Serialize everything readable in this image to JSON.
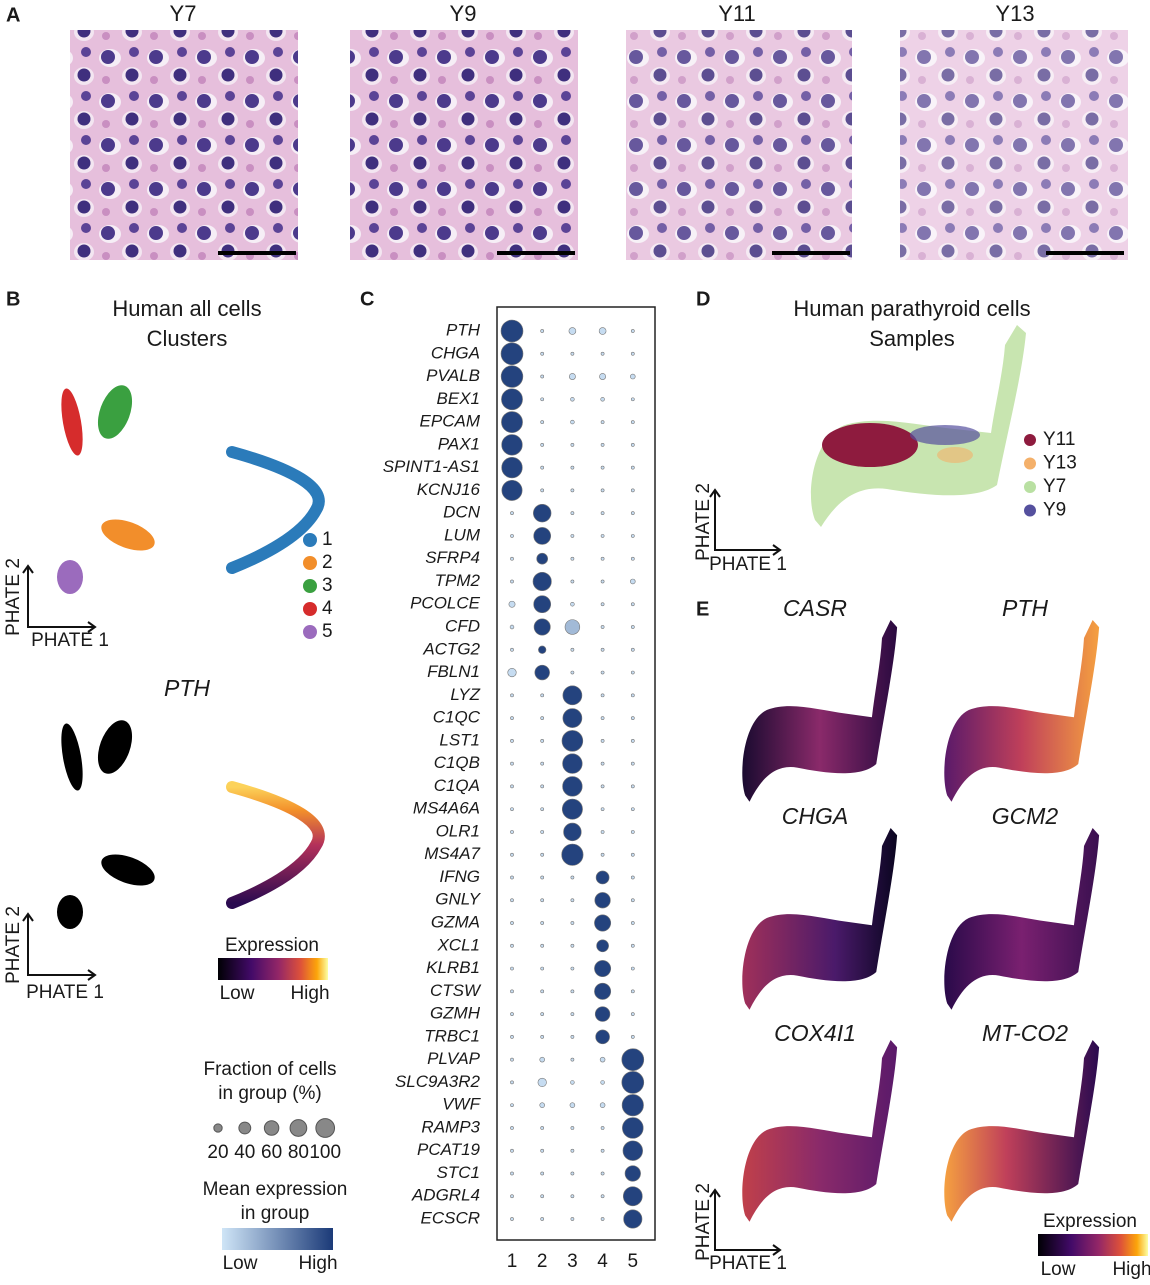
{
  "panel_a": {
    "letter": "A",
    "samples": [
      "Y7",
      "Y9",
      "Y11",
      "Y13"
    ]
  },
  "panel_b": {
    "letter": "B",
    "title": [
      "Human all cells",
      "Clusters"
    ],
    "cluster_colors": [
      "#2b7bba",
      "#f28e2b",
      "#3aa040",
      "#d62c2c",
      "#9b6bbd"
    ],
    "x_label": "PHATE 1",
    "y_label": "PHATE 2",
    "gene": "PTH",
    "colorbar": {
      "title": "Expression",
      "low": "Low",
      "high": "High"
    }
  },
  "chart_data": {
    "type": "dotplot",
    "letter": "C",
    "categories": [
      "1",
      "2",
      "3",
      "4",
      "5"
    ],
    "genes": [
      "PTH",
      "CHGA",
      "PVALB",
      "BEX1",
      "EPCAM",
      "PAX1",
      "SPINT1-AS1",
      "KCNJ16",
      "DCN",
      "LUM",
      "SFRP4",
      "TPM2",
      "PCOLCE",
      "CFD",
      "ACTG2",
      "FBLN1",
      "LYZ",
      "C1QC",
      "LST1",
      "C1QB",
      "C1QA",
      "MS4A6A",
      "OLR1",
      "MS4A7",
      "IFNG",
      "GNLY",
      "GZMA",
      "XCL1",
      "KLRB1",
      "CTSW",
      "GZMH",
      "TRBC1",
      "PLVAP",
      "SLC9A3R2",
      "VWF",
      "RAMP3",
      "PCAT19",
      "STC1",
      "ADGRL4",
      "ECSCR"
    ],
    "fraction": [
      [
        100,
        2,
        10,
        10,
        2
      ],
      [
        100,
        2,
        2,
        2,
        2
      ],
      [
        98,
        2,
        8,
        8,
        5
      ],
      [
        92,
        2,
        3,
        3,
        2
      ],
      [
        92,
        2,
        3,
        2,
        2
      ],
      [
        88,
        2,
        2,
        2,
        2
      ],
      [
        88,
        2,
        2,
        2,
        2
      ],
      [
        85,
        2,
        2,
        2,
        2
      ],
      [
        2,
        65,
        2,
        2,
        2
      ],
      [
        2,
        60,
        2,
        2,
        2
      ],
      [
        2,
        25,
        2,
        2,
        2
      ],
      [
        2,
        70,
        2,
        2,
        5
      ],
      [
        8,
        60,
        3,
        2,
        2
      ],
      [
        3,
        55,
        45,
        2,
        2
      ],
      [
        2,
        12,
        2,
        2,
        2
      ],
      [
        15,
        45,
        2,
        2,
        2
      ],
      [
        2,
        2,
        75,
        2,
        2
      ],
      [
        2,
        2,
        75,
        2,
        2
      ],
      [
        2,
        2,
        90,
        2,
        2
      ],
      [
        2,
        2,
        80,
        2,
        2
      ],
      [
        2,
        2,
        80,
        2,
        2
      ],
      [
        2,
        2,
        85,
        2,
        2
      ],
      [
        2,
        2,
        65,
        2,
        2
      ],
      [
        2,
        2,
        95,
        2,
        2
      ],
      [
        2,
        2,
        2,
        35,
        2
      ],
      [
        2,
        2,
        2,
        50,
        2
      ],
      [
        2,
        2,
        2,
        55,
        2
      ],
      [
        2,
        2,
        2,
        30,
        2
      ],
      [
        2,
        2,
        2,
        55,
        2
      ],
      [
        2,
        2,
        2,
        55,
        2
      ],
      [
        2,
        2,
        2,
        45,
        2
      ],
      [
        2,
        2,
        2,
        40,
        2
      ],
      [
        2,
        5,
        2,
        5,
        100
      ],
      [
        2,
        15,
        3,
        3,
        100
      ],
      [
        2,
        5,
        5,
        5,
        95
      ],
      [
        2,
        2,
        2,
        2,
        90
      ],
      [
        2,
        2,
        2,
        2,
        80
      ],
      [
        2,
        2,
        2,
        2,
        50
      ],
      [
        2,
        2,
        2,
        2,
        75
      ],
      [
        2,
        2,
        2,
        2,
        70
      ]
    ],
    "expression": [
      [
        0.95,
        0.05,
        0.05,
        0.05,
        0.05
      ],
      [
        0.95,
        0.05,
        0.05,
        0.05,
        0.05
      ],
      [
        0.95,
        0.05,
        0.05,
        0.05,
        0.05
      ],
      [
        0.95,
        0.05,
        0.05,
        0.05,
        0.05
      ],
      [
        0.95,
        0.05,
        0.05,
        0.05,
        0.05
      ],
      [
        0.95,
        0.05,
        0.05,
        0.05,
        0.05
      ],
      [
        0.95,
        0.05,
        0.05,
        0.05,
        0.05
      ],
      [
        0.95,
        0.05,
        0.05,
        0.05,
        0.05
      ],
      [
        0.05,
        0.95,
        0.05,
        0.05,
        0.05
      ],
      [
        0.05,
        0.95,
        0.05,
        0.05,
        0.05
      ],
      [
        0.05,
        0.95,
        0.05,
        0.05,
        0.05
      ],
      [
        0.05,
        0.95,
        0.05,
        0.05,
        0.05
      ],
      [
        0.05,
        0.95,
        0.05,
        0.05,
        0.05
      ],
      [
        0.05,
        0.95,
        0.25,
        0.05,
        0.05
      ],
      [
        0.05,
        0.95,
        0.05,
        0.05,
        0.05
      ],
      [
        0.05,
        0.95,
        0.05,
        0.05,
        0.05
      ],
      [
        0.05,
        0.05,
        0.95,
        0.05,
        0.05
      ],
      [
        0.05,
        0.05,
        0.95,
        0.05,
        0.05
      ],
      [
        0.05,
        0.05,
        0.95,
        0.05,
        0.05
      ],
      [
        0.05,
        0.05,
        0.95,
        0.05,
        0.05
      ],
      [
        0.05,
        0.05,
        0.95,
        0.05,
        0.05
      ],
      [
        0.05,
        0.05,
        0.95,
        0.05,
        0.05
      ],
      [
        0.05,
        0.05,
        0.95,
        0.05,
        0.05
      ],
      [
        0.05,
        0.05,
        0.95,
        0.05,
        0.05
      ],
      [
        0.05,
        0.05,
        0.05,
        0.95,
        0.05
      ],
      [
        0.05,
        0.05,
        0.05,
        0.95,
        0.05
      ],
      [
        0.05,
        0.05,
        0.05,
        0.95,
        0.05
      ],
      [
        0.05,
        0.05,
        0.05,
        0.95,
        0.05
      ],
      [
        0.05,
        0.05,
        0.05,
        0.95,
        0.05
      ],
      [
        0.05,
        0.05,
        0.05,
        0.95,
        0.05
      ],
      [
        0.05,
        0.05,
        0.05,
        0.95,
        0.05
      ],
      [
        0.05,
        0.05,
        0.05,
        0.95,
        0.05
      ],
      [
        0.05,
        0.05,
        0.05,
        0.05,
        0.95
      ],
      [
        0.05,
        0.05,
        0.05,
        0.05,
        0.95
      ],
      [
        0.05,
        0.05,
        0.05,
        0.05,
        0.95
      ],
      [
        0.05,
        0.05,
        0.05,
        0.05,
        0.95
      ],
      [
        0.05,
        0.05,
        0.05,
        0.05,
        0.95
      ],
      [
        0.05,
        0.05,
        0.05,
        0.05,
        0.95
      ],
      [
        0.05,
        0.05,
        0.05,
        0.05,
        0.95
      ],
      [
        0.05,
        0.05,
        0.05,
        0.05,
        0.95
      ]
    ],
    "expression_lim": [
      0,
      1
    ],
    "color_low": "#cfe5f7",
    "color_high": "#1b3a78",
    "size_legend": {
      "title": [
        "Fraction of cells",
        "in group (%)"
      ],
      "values": [
        20,
        40,
        60,
        80,
        100
      ]
    },
    "colorbar": {
      "title": [
        "Mean expression",
        "in group"
      ],
      "low": "Low",
      "high": "High"
    }
  },
  "panel_d": {
    "letter": "D",
    "title": [
      "Human parathyroid cells",
      "Samples"
    ],
    "x_label": "PHATE 1",
    "y_label": "PHATE 2",
    "samples": [
      {
        "name": "Y11",
        "color": "#8e1b3e"
      },
      {
        "name": "Y13",
        "color": "#f4b06a"
      },
      {
        "name": "Y7",
        "color": "#b9e0a2"
      },
      {
        "name": "Y9",
        "color": "#55509e"
      }
    ]
  },
  "panel_e": {
    "letter": "E",
    "genes": [
      "CASR",
      "PTH",
      "CHGA",
      "GCM2",
      "COX4I1",
      "MT-CO2"
    ],
    "x_label": "PHATE 1",
    "y_label": "PHATE 2",
    "colorbar": {
      "title": "Expression",
      "low": "Low",
      "high": "High"
    }
  }
}
